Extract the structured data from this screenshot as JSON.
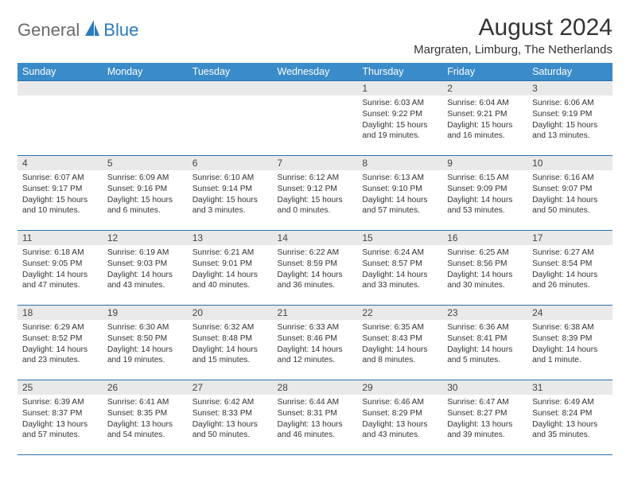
{
  "brand": {
    "general": "General",
    "blue": "Blue",
    "accent": "#2b7bbd",
    "text_gray": "#6a6a6a"
  },
  "title": "August 2024",
  "location": "Margraten, Limburg, The Netherlands",
  "header_bg": "#3a8bc9",
  "border_color": "#2b6fa8",
  "daynum_bg": "#e9e9e9",
  "weekdays": [
    "Sunday",
    "Monday",
    "Tuesday",
    "Wednesday",
    "Thursday",
    "Friday",
    "Saturday"
  ],
  "weeks": [
    [
      {
        "day": "",
        "sunrise": "",
        "sunset": "",
        "daylight": ""
      },
      {
        "day": "",
        "sunrise": "",
        "sunset": "",
        "daylight": ""
      },
      {
        "day": "",
        "sunrise": "",
        "sunset": "",
        "daylight": ""
      },
      {
        "day": "",
        "sunrise": "",
        "sunset": "",
        "daylight": ""
      },
      {
        "day": "1",
        "sunrise": "Sunrise: 6:03 AM",
        "sunset": "Sunset: 9:22 PM",
        "daylight": "Daylight: 15 hours and 19 minutes."
      },
      {
        "day": "2",
        "sunrise": "Sunrise: 6:04 AM",
        "sunset": "Sunset: 9:21 PM",
        "daylight": "Daylight: 15 hours and 16 minutes."
      },
      {
        "day": "3",
        "sunrise": "Sunrise: 6:06 AM",
        "sunset": "Sunset: 9:19 PM",
        "daylight": "Daylight: 15 hours and 13 minutes."
      }
    ],
    [
      {
        "day": "4",
        "sunrise": "Sunrise: 6:07 AM",
        "sunset": "Sunset: 9:17 PM",
        "daylight": "Daylight: 15 hours and 10 minutes."
      },
      {
        "day": "5",
        "sunrise": "Sunrise: 6:09 AM",
        "sunset": "Sunset: 9:16 PM",
        "daylight": "Daylight: 15 hours and 6 minutes."
      },
      {
        "day": "6",
        "sunrise": "Sunrise: 6:10 AM",
        "sunset": "Sunset: 9:14 PM",
        "daylight": "Daylight: 15 hours and 3 minutes."
      },
      {
        "day": "7",
        "sunrise": "Sunrise: 6:12 AM",
        "sunset": "Sunset: 9:12 PM",
        "daylight": "Daylight: 15 hours and 0 minutes."
      },
      {
        "day": "8",
        "sunrise": "Sunrise: 6:13 AM",
        "sunset": "Sunset: 9:10 PM",
        "daylight": "Daylight: 14 hours and 57 minutes."
      },
      {
        "day": "9",
        "sunrise": "Sunrise: 6:15 AM",
        "sunset": "Sunset: 9:09 PM",
        "daylight": "Daylight: 14 hours and 53 minutes."
      },
      {
        "day": "10",
        "sunrise": "Sunrise: 6:16 AM",
        "sunset": "Sunset: 9:07 PM",
        "daylight": "Daylight: 14 hours and 50 minutes."
      }
    ],
    [
      {
        "day": "11",
        "sunrise": "Sunrise: 6:18 AM",
        "sunset": "Sunset: 9:05 PM",
        "daylight": "Daylight: 14 hours and 47 minutes."
      },
      {
        "day": "12",
        "sunrise": "Sunrise: 6:19 AM",
        "sunset": "Sunset: 9:03 PM",
        "daylight": "Daylight: 14 hours and 43 minutes."
      },
      {
        "day": "13",
        "sunrise": "Sunrise: 6:21 AM",
        "sunset": "Sunset: 9:01 PM",
        "daylight": "Daylight: 14 hours and 40 minutes."
      },
      {
        "day": "14",
        "sunrise": "Sunrise: 6:22 AM",
        "sunset": "Sunset: 8:59 PM",
        "daylight": "Daylight: 14 hours and 36 minutes."
      },
      {
        "day": "15",
        "sunrise": "Sunrise: 6:24 AM",
        "sunset": "Sunset: 8:57 PM",
        "daylight": "Daylight: 14 hours and 33 minutes."
      },
      {
        "day": "16",
        "sunrise": "Sunrise: 6:25 AM",
        "sunset": "Sunset: 8:56 PM",
        "daylight": "Daylight: 14 hours and 30 minutes."
      },
      {
        "day": "17",
        "sunrise": "Sunrise: 6:27 AM",
        "sunset": "Sunset: 8:54 PM",
        "daylight": "Daylight: 14 hours and 26 minutes."
      }
    ],
    [
      {
        "day": "18",
        "sunrise": "Sunrise: 6:29 AM",
        "sunset": "Sunset: 8:52 PM",
        "daylight": "Daylight: 14 hours and 23 minutes."
      },
      {
        "day": "19",
        "sunrise": "Sunrise: 6:30 AM",
        "sunset": "Sunset: 8:50 PM",
        "daylight": "Daylight: 14 hours and 19 minutes."
      },
      {
        "day": "20",
        "sunrise": "Sunrise: 6:32 AM",
        "sunset": "Sunset: 8:48 PM",
        "daylight": "Daylight: 14 hours and 15 minutes."
      },
      {
        "day": "21",
        "sunrise": "Sunrise: 6:33 AM",
        "sunset": "Sunset: 8:46 PM",
        "daylight": "Daylight: 14 hours and 12 minutes."
      },
      {
        "day": "22",
        "sunrise": "Sunrise: 6:35 AM",
        "sunset": "Sunset: 8:43 PM",
        "daylight": "Daylight: 14 hours and 8 minutes."
      },
      {
        "day": "23",
        "sunrise": "Sunrise: 6:36 AM",
        "sunset": "Sunset: 8:41 PM",
        "daylight": "Daylight: 14 hours and 5 minutes."
      },
      {
        "day": "24",
        "sunrise": "Sunrise: 6:38 AM",
        "sunset": "Sunset: 8:39 PM",
        "daylight": "Daylight: 14 hours and 1 minute."
      }
    ],
    [
      {
        "day": "25",
        "sunrise": "Sunrise: 6:39 AM",
        "sunset": "Sunset: 8:37 PM",
        "daylight": "Daylight: 13 hours and 57 minutes."
      },
      {
        "day": "26",
        "sunrise": "Sunrise: 6:41 AM",
        "sunset": "Sunset: 8:35 PM",
        "daylight": "Daylight: 13 hours and 54 minutes."
      },
      {
        "day": "27",
        "sunrise": "Sunrise: 6:42 AM",
        "sunset": "Sunset: 8:33 PM",
        "daylight": "Daylight: 13 hours and 50 minutes."
      },
      {
        "day": "28",
        "sunrise": "Sunrise: 6:44 AM",
        "sunset": "Sunset: 8:31 PM",
        "daylight": "Daylight: 13 hours and 46 minutes."
      },
      {
        "day": "29",
        "sunrise": "Sunrise: 6:46 AM",
        "sunset": "Sunset: 8:29 PM",
        "daylight": "Daylight: 13 hours and 43 minutes."
      },
      {
        "day": "30",
        "sunrise": "Sunrise: 6:47 AM",
        "sunset": "Sunset: 8:27 PM",
        "daylight": "Daylight: 13 hours and 39 minutes."
      },
      {
        "day": "31",
        "sunrise": "Sunrise: 6:49 AM",
        "sunset": "Sunset: 8:24 PM",
        "daylight": "Daylight: 13 hours and 35 minutes."
      }
    ]
  ]
}
